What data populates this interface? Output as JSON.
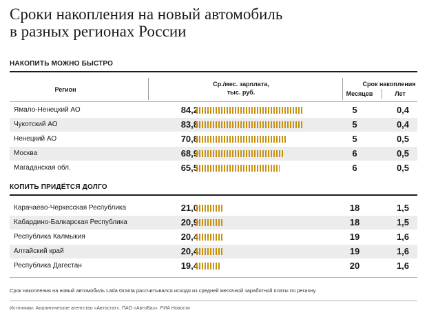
{
  "title_line1": "Сроки накопления на новый автомобиль",
  "title_line2": "в разных регионах России",
  "headers": {
    "region": "Регион",
    "salary_line1": "Ср./мес. зарплата,",
    "salary_line2": "тыс. руб.",
    "period": "Срок накопления",
    "months": "Месяцев",
    "years": "Лет"
  },
  "footnote": "Срок накопления на новый автомобиль Lada Granta рассчитывался исходя из средней месячной заработной платы по региону",
  "sources": "Источники: Аналитическое агентство «Автостат», ПАО «АвтоВаз», РИА Новости",
  "colors": {
    "bar": "#c8900e",
    "row_shade": "#ececec"
  },
  "chart_data": {
    "type": "table",
    "bar_scale_max": 84.2,
    "groups": [
      {
        "heading": "НАКОПИТЬ МОЖНО БЫСТРО",
        "rows": [
          {
            "region": "Ямало-Ненецкий АО",
            "salary": "84,2",
            "salary_value": 84.2,
            "months": "5",
            "years": "0,4"
          },
          {
            "region": "Чукотский АО",
            "salary": "83,8",
            "salary_value": 83.8,
            "months": "5",
            "years": "0,4"
          },
          {
            "region": "Ненецкий АО",
            "salary": "70,8",
            "salary_value": 70.8,
            "months": "5",
            "years": "0,5"
          },
          {
            "region": "Москва",
            "salary": "68,9",
            "salary_value": 68.9,
            "months": "6",
            "years": "0,5"
          },
          {
            "region": "Магаданская обл.",
            "salary": "65,5",
            "salary_value": 65.5,
            "months": "6",
            "years": "0,5"
          }
        ]
      },
      {
        "heading": "КОПИТЬ ПРИДЁТСЯ ДОЛГО",
        "rows": [
          {
            "region": "Карачаево-Черкесская Республика",
            "salary": "21,0",
            "salary_value": 21.0,
            "months": "18",
            "years": "1,5"
          },
          {
            "region": "Кабардино-Балкарская Республика",
            "salary": "20,9",
            "salary_value": 20.9,
            "months": "18",
            "years": "1,5"
          },
          {
            "region": "Республика Калмыкия",
            "salary": "20,4",
            "salary_value": 20.4,
            "months": "19",
            "years": "1,6"
          },
          {
            "region": "Алтайский край",
            "salary": "20,4",
            "salary_value": 20.4,
            "months": "19",
            "years": "1,6"
          },
          {
            "region": "Республика Дагестан",
            "salary": "19,4",
            "salary_value": 19.4,
            "months": "20",
            "years": "1,6"
          }
        ]
      }
    ]
  }
}
